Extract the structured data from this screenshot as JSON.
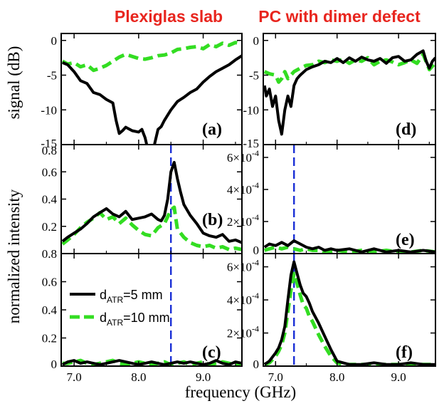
{
  "titles": {
    "left": "Plexiglas slab",
    "right": "PC with dimer defect"
  },
  "axis_labels": {
    "y_top": "signal (dB)",
    "y_bottom": "normalized intensity",
    "x": "frequency  (GHz)"
  },
  "legend": {
    "entries": [
      "d_ATR=5 mm",
      "d_ATR=10 mm"
    ]
  },
  "colors": {
    "series_5mm": "#000000",
    "series_10mm": "#33dd22",
    "resonance_line": "#1a2fd6",
    "title": "#e8251e"
  },
  "chart_data": [
    {
      "id": "a",
      "panel_label": "(a)",
      "type": "line",
      "xlim": [
        6.8,
        9.6
      ],
      "ylim": [
        -15,
        1
      ],
      "xticks": [
        7.0,
        8.0,
        9.0
      ],
      "xtick_labels": [
        "7.0",
        "8.0",
        "9.0"
      ],
      "yticks": [
        -15,
        -10,
        -5,
        0
      ],
      "ytick_labels": [
        "-15",
        "-10",
        "-5",
        "0"
      ],
      "grid": false,
      "series": [
        {
          "name": "d_ATR=5 mm",
          "color": "#000000",
          "dashed": false,
          "x": [
            6.82,
            6.9,
            7.0,
            7.1,
            7.2,
            7.3,
            7.4,
            7.5,
            7.6,
            7.65,
            7.7,
            7.75,
            7.8,
            7.9,
            8.0,
            8.05,
            8.1,
            8.15,
            8.2,
            8.25,
            8.3,
            8.35,
            8.4,
            8.5,
            8.6,
            8.7,
            8.8,
            8.9,
            9.0,
            9.1,
            9.2,
            9.3,
            9.4,
            9.5,
            9.6
          ],
          "y": [
            -3.2,
            -3.5,
            -4.5,
            -5.8,
            -6.2,
            -7.5,
            -7.8,
            -8.5,
            -9.0,
            -11.5,
            -13.4,
            -13.0,
            -12.5,
            -13.0,
            -13.2,
            -12.8,
            -14.0,
            -16.0,
            -17.2,
            -14.8,
            -12.8,
            -12.4,
            -11.5,
            -10.0,
            -8.8,
            -8.2,
            -7.5,
            -7.0,
            -6.0,
            -5.2,
            -4.5,
            -4.0,
            -3.5,
            -2.8,
            -2.2
          ]
        },
        {
          "name": "d_ATR=10 mm",
          "color": "#33dd22",
          "dashed": true,
          "x": [
            6.82,
            6.9,
            7.0,
            7.1,
            7.2,
            7.3,
            7.4,
            7.5,
            7.6,
            7.7,
            7.8,
            7.9,
            8.0,
            8.1,
            8.2,
            8.3,
            8.4,
            8.5,
            8.6,
            8.7,
            8.8,
            8.9,
            9.0,
            9.1,
            9.2,
            9.3,
            9.4,
            9.5,
            9.6
          ],
          "y": [
            -3.0,
            -3.4,
            -3.2,
            -3.8,
            -3.5,
            -4.3,
            -4.0,
            -3.6,
            -3.0,
            -2.4,
            -2.0,
            -2.3,
            -2.6,
            -2.7,
            -2.5,
            -2.2,
            -2.1,
            -1.8,
            -1.3,
            -1.2,
            -1.0,
            -0.9,
            -1.2,
            -0.6,
            -0.9,
            -0.4,
            -0.7,
            -0.3,
            -0.5
          ]
        }
      ]
    },
    {
      "id": "b",
      "panel_label": "(b)",
      "type": "line",
      "xlim": [
        6.8,
        9.6
      ],
      "ylim": [
        0,
        0.8
      ],
      "xticks": [
        7.0,
        8.0,
        9.0
      ],
      "xtick_labels": [
        "7.0",
        "8.0",
        "9.0"
      ],
      "yticks": [
        0.2,
        0.4,
        0.6,
        0.8
      ],
      "ytick_labels": [
        "0.2",
        "0.4",
        "0.6",
        "0.8"
      ],
      "grid": false,
      "vline": 8.5,
      "series": [
        {
          "name": "d_ATR=5 mm",
          "color": "#000000",
          "dashed": false,
          "x": [
            6.82,
            6.9,
            7.0,
            7.1,
            7.2,
            7.3,
            7.4,
            7.5,
            7.6,
            7.7,
            7.8,
            7.9,
            8.0,
            8.1,
            8.2,
            8.3,
            8.35,
            8.4,
            8.45,
            8.5,
            8.55,
            8.6,
            8.65,
            8.7,
            8.8,
            8.9,
            9.0,
            9.1,
            9.2,
            9.3,
            9.4,
            9.5,
            9.6
          ],
          "y": [
            0.09,
            0.12,
            0.15,
            0.18,
            0.22,
            0.27,
            0.3,
            0.33,
            0.29,
            0.27,
            0.31,
            0.25,
            0.26,
            0.27,
            0.29,
            0.25,
            0.24,
            0.28,
            0.4,
            0.6,
            0.67,
            0.55,
            0.45,
            0.36,
            0.28,
            0.22,
            0.15,
            0.13,
            0.12,
            0.14,
            0.09,
            0.1,
            0.08
          ]
        },
        {
          "name": "d_ATR=10 mm",
          "color": "#33dd22",
          "dashed": true,
          "x": [
            6.82,
            6.9,
            7.0,
            7.1,
            7.2,
            7.3,
            7.4,
            7.5,
            7.6,
            7.7,
            7.8,
            7.9,
            8.0,
            8.1,
            8.2,
            8.3,
            8.4,
            8.5,
            8.55,
            8.6,
            8.7,
            8.8,
            8.9,
            9.0,
            9.1,
            9.2,
            9.3,
            9.4,
            9.5,
            9.6
          ],
          "y": [
            0.07,
            0.1,
            0.14,
            0.19,
            0.23,
            0.26,
            0.3,
            0.25,
            0.27,
            0.22,
            0.26,
            0.21,
            0.17,
            0.14,
            0.13,
            0.19,
            0.22,
            0.32,
            0.34,
            0.18,
            0.12,
            0.08,
            0.06,
            0.05,
            0.06,
            0.04,
            0.05,
            0.03,
            0.04,
            0.03
          ]
        }
      ]
    },
    {
      "id": "c",
      "panel_label": "(c)",
      "type": "line",
      "xlim": [
        6.8,
        9.6
      ],
      "ylim": [
        0,
        0.8
      ],
      "xticks": [
        7.0,
        8.0,
        9.0
      ],
      "xtick_labels": [
        "7.0",
        "8.0",
        "9.0"
      ],
      "yticks": [
        0,
        0.2,
        0.4,
        0.6,
        0.8
      ],
      "ytick_labels": [
        "0",
        "0.2",
        "0.4",
        "0.6",
        "0.8"
      ],
      "grid": false,
      "vline": 8.5,
      "series": [
        {
          "name": "d_ATR=5 mm",
          "color": "#000000",
          "dashed": false,
          "x": [
            6.82,
            6.9,
            7.0,
            7.1,
            7.2,
            7.3,
            7.4,
            7.5,
            7.6,
            7.7,
            7.8,
            7.9,
            8.0,
            8.1,
            8.2,
            8.3,
            8.4,
            8.5,
            8.6,
            8.7,
            8.8,
            8.9,
            9.0,
            9.1,
            9.2,
            9.3,
            9.4,
            9.5,
            9.6
          ],
          "y": [
            0.01,
            0.03,
            0.04,
            0.02,
            0.03,
            0.02,
            0.01,
            0.02,
            0.03,
            0.04,
            0.03,
            0.02,
            0.01,
            0.02,
            0.03,
            0.02,
            0.01,
            0.02,
            0.03,
            0.02,
            0.03,
            0.02,
            0.01,
            0.02,
            0.04,
            0.02,
            0.01,
            0.03,
            0.02
          ]
        },
        {
          "name": "d_ATR=10 mm",
          "color": "#33dd22",
          "dashed": true,
          "x": [
            6.82,
            6.9,
            7.0,
            7.1,
            7.2,
            7.3,
            7.4,
            7.5,
            7.6,
            7.7,
            7.8,
            7.9,
            8.0,
            8.1,
            8.2,
            8.3,
            8.4,
            8.5,
            8.6,
            8.7,
            8.8,
            8.9,
            9.0,
            9.1,
            9.2,
            9.3,
            9.4,
            9.5,
            9.6
          ],
          "y": [
            0.02,
            0.02,
            0.03,
            0.04,
            0.02,
            0.01,
            0.02,
            0.03,
            0.04,
            0.02,
            0.01,
            0.02,
            0.03,
            0.02,
            0.01,
            0.02,
            0.03,
            0.01,
            0.02,
            0.03,
            0.01,
            0.02,
            0.03,
            0.01,
            0.02,
            0.03,
            0.02,
            0.01,
            0.02
          ]
        }
      ]
    },
    {
      "id": "d",
      "panel_label": "(d)",
      "type": "line",
      "xlim": [
        6.8,
        9.6
      ],
      "ylim": [
        -15,
        1
      ],
      "xticks": [
        7.0,
        8.0,
        9.0
      ],
      "xtick_labels": [
        "7.0",
        "8.0",
        "9.0"
      ],
      "yticks": [
        -15,
        -10,
        -5,
        0
      ],
      "ytick_labels": [
        "-15",
        "-10",
        "-5",
        "0"
      ],
      "grid": false,
      "series": [
        {
          "name": "d_ATR=5 mm",
          "color": "#000000",
          "dashed": false,
          "x": [
            6.82,
            6.85,
            6.9,
            6.95,
            7.0,
            7.05,
            7.1,
            7.15,
            7.2,
            7.25,
            7.3,
            7.35,
            7.4,
            7.5,
            7.6,
            7.7,
            7.8,
            7.9,
            8.0,
            8.1,
            8.2,
            8.3,
            8.4,
            8.5,
            8.6,
            8.7,
            8.8,
            8.9,
            9.0,
            9.1,
            9.2,
            9.3,
            9.4,
            9.45,
            9.5,
            9.55,
            9.6
          ],
          "y": [
            -6.5,
            -8.0,
            -7.0,
            -9.5,
            -8.0,
            -11.5,
            -13.5,
            -10.0,
            -8.0,
            -9.5,
            -6.5,
            -5.5,
            -5.0,
            -4.2,
            -3.8,
            -3.5,
            -3.0,
            -3.2,
            -2.6,
            -3.2,
            -2.5,
            -3.0,
            -2.4,
            -2.8,
            -3.0,
            -2.6,
            -3.3,
            -2.5,
            -2.3,
            -3.0,
            -2.8,
            -2.0,
            -1.5,
            -3.0,
            -4.0,
            -3.0,
            -2.5
          ]
        },
        {
          "name": "d_ATR=10 mm",
          "color": "#33dd22",
          "dashed": true,
          "x": [
            6.82,
            6.9,
            7.0,
            7.05,
            7.1,
            7.15,
            7.2,
            7.3,
            7.4,
            7.5,
            7.6,
            7.7,
            7.8,
            7.9,
            8.0,
            8.1,
            8.2,
            8.3,
            8.4,
            8.5,
            8.6,
            8.7,
            8.8,
            8.9,
            9.0,
            9.1,
            9.2,
            9.3,
            9.4,
            9.5,
            9.6
          ],
          "y": [
            -4.5,
            -4.8,
            -5.0,
            -6.0,
            -5.5,
            -4.5,
            -5.5,
            -4.5,
            -4.0,
            -3.6,
            -3.5,
            -3.0,
            -3.2,
            -2.8,
            -3.0,
            -2.7,
            -3.3,
            -2.8,
            -3.0,
            -2.5,
            -3.5,
            -3.0,
            -2.8,
            -3.1,
            -3.5,
            -3.2,
            -2.8,
            -3.3,
            -2.0,
            -4.2,
            -3.2
          ]
        }
      ]
    },
    {
      "id": "e",
      "panel_label": "(e)",
      "type": "line",
      "xlim": [
        6.8,
        9.6
      ],
      "ylim": [
        0,
        0.00068
      ],
      "xticks": [
        7.0,
        8.0,
        9.0
      ],
      "xtick_labels": [
        "7.0",
        "8.0",
        "9.0"
      ],
      "yticks": [
        0,
        0.0002,
        0.0004,
        0.0006
      ],
      "ytick_labels": [
        "0",
        "2×10⁻⁴",
        "4×10⁻⁴",
        "6×10⁻⁴"
      ],
      "grid": false,
      "vline": 7.3,
      "series": [
        {
          "name": "d_ATR=5 mm",
          "color": "#000000",
          "dashed": false,
          "x": [
            6.82,
            6.9,
            7.0,
            7.1,
            7.2,
            7.3,
            7.4,
            7.5,
            7.6,
            7.7,
            7.8,
            7.9,
            8.0,
            8.2,
            8.4,
            8.6,
            8.8,
            9.0,
            9.2,
            9.4,
            9.6
          ],
          "y": [
            4e-05,
            6e-05,
            5e-05,
            7e-05,
            5e-05,
            8e-05,
            6e-05,
            4e-05,
            3e-05,
            4e-05,
            2e-05,
            3e-05,
            2e-05,
            3e-05,
            1e-05,
            3e-05,
            1e-05,
            2e-05,
            1e-05,
            2e-05,
            1e-05
          ]
        },
        {
          "name": "d_ATR=10 mm",
          "color": "#33dd22",
          "dashed": true,
          "x": [
            6.82,
            6.9,
            7.0,
            7.1,
            7.2,
            7.3,
            7.4,
            7.5,
            7.6,
            7.7,
            7.8,
            8.0,
            8.2,
            8.4,
            8.6,
            8.8,
            9.0,
            9.2,
            9.4,
            9.6
          ],
          "y": [
            2e-05,
            3e-05,
            4e-05,
            3e-05,
            4e-05,
            3e-05,
            2e-05,
            3e-05,
            2e-05,
            2e-05,
            1e-05,
            2e-05,
            1e-05,
            2e-05,
            1e-05,
            2e-05,
            1e-05,
            1e-05,
            2e-05,
            1e-05
          ]
        }
      ]
    },
    {
      "id": "f",
      "panel_label": "(f)",
      "type": "line",
      "xlim": [
        6.8,
        9.6
      ],
      "ylim": [
        0,
        0.00068
      ],
      "xticks": [
        7.0,
        8.0,
        9.0
      ],
      "xtick_labels": [
        "7.0",
        "8.0",
        "9.0"
      ],
      "yticks": [
        0,
        0.0002,
        0.0004,
        0.0006
      ],
      "ytick_labels": [
        "0",
        "2×10⁻⁴",
        "4×10⁻⁴",
        "6×10⁻⁴"
      ],
      "grid": false,
      "vline": 7.3,
      "series": [
        {
          "name": "d_ATR=5 mm",
          "color": "#000000",
          "dashed": false,
          "x": [
            6.82,
            6.9,
            7.0,
            7.05,
            7.1,
            7.15,
            7.2,
            7.25,
            7.3,
            7.35,
            7.4,
            7.45,
            7.5,
            7.55,
            7.6,
            7.7,
            7.8,
            7.9,
            8.0,
            8.1,
            8.2,
            8.4,
            8.6,
            8.8,
            9.0,
            9.2,
            9.4,
            9.6
          ],
          "y": [
            1e-05,
            3e-05,
            8e-05,
            0.00011,
            0.00016,
            0.00024,
            0.0004,
            0.00055,
            0.00063,
            0.00056,
            0.00049,
            0.00044,
            0.00042,
            0.00038,
            0.00033,
            0.00026,
            0.00018,
            0.0001,
            3e-05,
            2e-05,
            1e-05,
            1e-05,
            2e-05,
            1e-05,
            1e-05,
            2e-05,
            1e-05,
            1e-05
          ]
        },
        {
          "name": "d_ATR=10 mm",
          "color": "#33dd22",
          "dashed": true,
          "x": [
            6.82,
            6.9,
            7.0,
            7.05,
            7.1,
            7.15,
            7.2,
            7.25,
            7.3,
            7.35,
            7.4,
            7.45,
            7.5,
            7.55,
            7.6,
            7.7,
            7.8,
            7.9,
            8.0,
            8.1,
            8.2,
            8.4,
            8.6,
            8.8,
            9.0,
            9.2,
            9.4,
            9.6
          ],
          "y": [
            1e-05,
            2e-05,
            6e-05,
            9e-05,
            0.00013,
            0.0002,
            0.00033,
            0.00046,
            0.00056,
            0.0005,
            0.00043,
            0.00037,
            0.00035,
            0.0003,
            0.00027,
            0.00019,
            0.00012,
            6e-05,
            2e-05,
            1e-05,
            1e-05,
            1e-05,
            1e-05,
            1e-05,
            1e-05,
            1e-05,
            1e-05,
            1e-05
          ]
        }
      ]
    }
  ]
}
